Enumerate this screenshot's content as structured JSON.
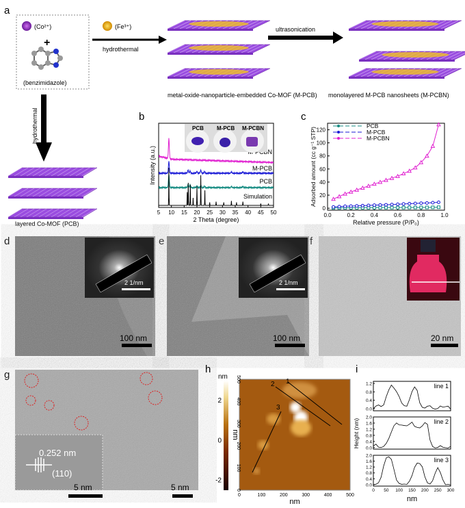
{
  "panels": {
    "a": "a",
    "b": "b",
    "c": "c",
    "d": "d",
    "e": "e",
    "f": "f",
    "g": "g",
    "h": "h",
    "i": "i"
  },
  "scheme": {
    "co_ion": "(Co²⁺)",
    "fe_ion": "(Fe³⁺)",
    "plus": "+",
    "ligand": "(benzimidazole)",
    "hydrothermal_right": "hydrothermal",
    "hydrothermal_down": "hydrothermal",
    "ultrasonication": "ultrasonication",
    "mpcb_caption": "metal-oxide-nanoparticle-embedded  Co-MOF (M-PCB)",
    "mpcbn_caption": "monolayered M-PCB nanosheets (M-PCBN)",
    "pcb_caption": "layered Co-MOF (PCB)"
  },
  "photos": {
    "pcb": "PCB",
    "mpcb": "M-PCB",
    "mpcbn": "M-PCBN"
  },
  "scalebars": {
    "d_inset": "2 1/nm",
    "d": "100 nm",
    "e_inset": "2 1/nm",
    "e": "100 nm",
    "f": "20 nm",
    "g": "5 nm",
    "g_inset": "5 nm",
    "g_d": "0.252 nm",
    "g_hkl": "(110)"
  },
  "colors": {
    "pcb": "#138a80",
    "mpcb": "#1a1ad6",
    "mpcbn": "#e020d0",
    "sim": "#000000",
    "mof": "#9a4de0"
  },
  "chart_data": [
    {
      "id": "b",
      "type": "line",
      "xlabel": "2 Theta (degree)",
      "ylabel": "Intensity (a.u.)",
      "xlim": [
        5,
        50
      ],
      "xticks": [
        5,
        10,
        15,
        20,
        25,
        30,
        35,
        40,
        45,
        50
      ],
      "series": [
        {
          "name": "M-PCBN",
          "peaks": [
            [
              9,
              1.0
            ]
          ]
        },
        {
          "name": "M-PCB",
          "peaks": [
            [
              9,
              0.8
            ],
            [
              16.5,
              0.2
            ],
            [
              17.3,
              0.15
            ],
            [
              20,
              0.12
            ],
            [
              21.5,
              0.2
            ],
            [
              23,
              0.12
            ],
            [
              33.5,
              0.1
            ],
            [
              38,
              0.1
            ]
          ]
        },
        {
          "name": "PCB",
          "peaks": [
            [
              9,
              0.9
            ],
            [
              16.5,
              0.2
            ],
            [
              17.3,
              0.18
            ],
            [
              20,
              0.12
            ],
            [
              21.5,
              0.15
            ],
            [
              23,
              0.1
            ],
            [
              33.5,
              0.08
            ],
            [
              38,
              0.08
            ]
          ]
        },
        {
          "name": "Simulation",
          "peaks": [
            [
              9,
              1.0
            ],
            [
              16.2,
              0.35
            ],
            [
              16.6,
              0.6
            ],
            [
              17.4,
              0.55
            ],
            [
              18.5,
              0.2
            ],
            [
              20,
              0.5
            ],
            [
              21.5,
              0.8
            ],
            [
              23.1,
              0.4
            ],
            [
              25,
              0.08
            ],
            [
              27.5,
              0.1
            ],
            [
              30.5,
              0.08
            ],
            [
              33.5,
              0.12
            ],
            [
              35.5,
              0.08
            ],
            [
              38,
              0.1
            ],
            [
              45,
              0.05
            ],
            [
              48,
              0.05
            ]
          ]
        }
      ]
    },
    {
      "id": "c",
      "type": "line",
      "xlabel": "Relative pressure (P/P₀)",
      "ylabel": "Adsorbed amount (cc g⁻¹ STP)",
      "xlim": [
        0,
        1
      ],
      "ylim": [
        -3,
        130
      ],
      "xticks": [
        "0.0",
        "0.2",
        "0.4",
        "0.6",
        "0.8",
        "1.0"
      ],
      "yticks": [
        "0",
        "20",
        "40",
        "60",
        "80",
        "100",
        "120"
      ],
      "legend": "top-left",
      "x": [
        0.05,
        0.1,
        0.15,
        0.2,
        0.25,
        0.3,
        0.35,
        0.4,
        0.45,
        0.5,
        0.55,
        0.6,
        0.65,
        0.7,
        0.75,
        0.8,
        0.85,
        0.9,
        0.95
      ],
      "series": [
        {
          "name": "PCB",
          "values": [
            0.5,
            0.5,
            0.6,
            0.6,
            0.7,
            0.7,
            0.8,
            0.8,
            0.9,
            0.9,
            1,
            1,
            1,
            1.1,
            1.1,
            1.2,
            1.2,
            1.3,
            1.5
          ]
        },
        {
          "name": "M-PCB",
          "values": [
            2,
            2.5,
            3,
            3.3,
            3.6,
            4,
            4.3,
            4.7,
            5,
            5.3,
            5.7,
            6,
            6.5,
            7,
            7.3,
            7.7,
            8,
            8.5,
            9
          ]
        },
        {
          "name": "M-PCBN",
          "values": [
            14,
            18,
            22,
            25,
            28,
            31,
            34,
            37,
            40,
            43,
            46,
            49,
            53,
            57,
            62,
            70,
            80,
            95,
            128
          ]
        }
      ]
    },
    {
      "id": "h",
      "type": "heatmap",
      "xlabel": "nm",
      "ylabel": "nm",
      "xticks": [
        "0",
        "100",
        "200",
        "300",
        "400",
        "500"
      ],
      "yticks": [
        "0",
        "100",
        "200",
        "300",
        "400",
        "500"
      ],
      "colorbar": {
        "label": "nm",
        "ticks": [
          "2",
          "0",
          "-2"
        ],
        "range": [
          -2.5,
          3
        ]
      },
      "lines": [
        "1",
        "2",
        "3"
      ]
    },
    {
      "id": "i",
      "type": "line",
      "xlabel": "nm",
      "ylabel": "Height (nm)",
      "xlim": [
        0,
        300
      ],
      "xticks": [
        "0",
        "50",
        "100",
        "150",
        "200",
        "250",
        "300"
      ],
      "series": [
        {
          "name": "line 1",
          "ylim": [
            -0.1,
            1.3
          ],
          "yticks": [
            "0.0",
            "0.4",
            "0.8",
            "1.2"
          ],
          "x": [
            0,
            10,
            20,
            30,
            40,
            50,
            60,
            70,
            80,
            90,
            100,
            110,
            120,
            130,
            140,
            150,
            160,
            170,
            180,
            190,
            200,
            210,
            220,
            230,
            240,
            250,
            260,
            270,
            280,
            290,
            300
          ],
          "values": [
            0,
            0.1,
            0.15,
            0.1,
            0.2,
            0.6,
            0.9,
            1.1,
            0.95,
            0.8,
            0.6,
            0.3,
            0.15,
            0.1,
            0.4,
            0.8,
            1.05,
            0.9,
            0.3,
            0.05,
            0,
            0.1,
            0.15,
            0.05,
            0,
            0,
            0.1,
            0.05,
            0.1,
            0.15,
            0
          ]
        },
        {
          "name": "line 2",
          "ylim": [
            -0.1,
            2.0
          ],
          "yticks": [
            "0.0",
            "0.4",
            "0.8",
            "1.2",
            "1.6",
            "2.0"
          ],
          "x": [
            0,
            10,
            20,
            30,
            40,
            50,
            60,
            70,
            80,
            90,
            100,
            110,
            120,
            130,
            140,
            150,
            160,
            170,
            180,
            190,
            200,
            210,
            220,
            230,
            240,
            250,
            260,
            270,
            280,
            290,
            300
          ],
          "values": [
            0.1,
            0.2,
            0,
            0,
            0.1,
            0.3,
            0.6,
            1.0,
            1.4,
            1.6,
            1.5,
            1.5,
            1.45,
            1.4,
            1.5,
            1.65,
            1.4,
            1.35,
            1.3,
            1.4,
            1.6,
            1.5,
            0.5,
            0.1,
            0,
            0,
            0.1,
            0,
            0,
            0,
            0.1
          ]
        },
        {
          "name": "line 3",
          "ylim": [
            -0.1,
            2.0
          ],
          "yticks": [
            "0.0",
            "0.4",
            "0.8",
            "1.2",
            "1.6",
            "2.0"
          ],
          "x": [
            0,
            10,
            20,
            30,
            40,
            50,
            60,
            70,
            80,
            90,
            100,
            110,
            120,
            130,
            140,
            150,
            160,
            170,
            180,
            190,
            200,
            210,
            220,
            230,
            240,
            250,
            260,
            270,
            280,
            290,
            300
          ],
          "values": [
            0,
            0,
            0.1,
            0.5,
            1.3,
            1.85,
            1.9,
            1.7,
            1.0,
            0.3,
            0.1,
            0.05,
            0.05,
            0,
            0.2,
            0.6,
            1.2,
            1.5,
            1.45,
            1.2,
            0.5,
            0.1,
            0.05,
            0.3,
            0.8,
            1.15,
            0.8,
            0.3,
            0,
            0.05,
            0
          ]
        }
      ]
    }
  ]
}
